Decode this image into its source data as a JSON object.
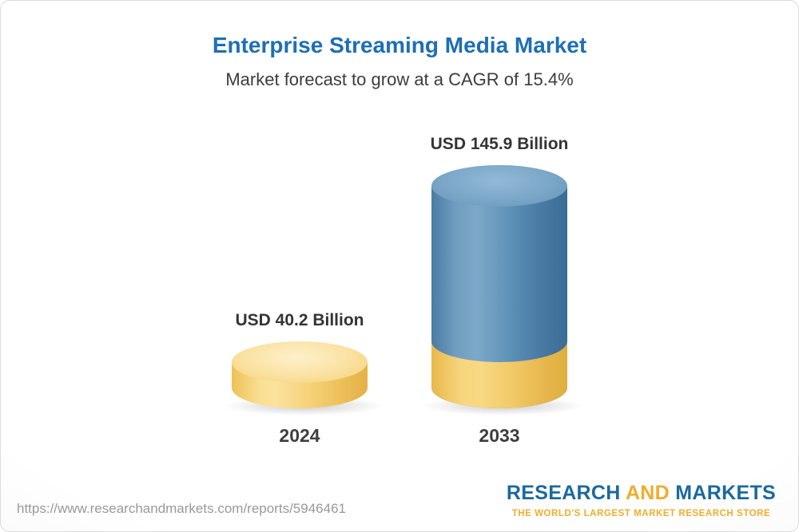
{
  "chart_data": {
    "type": "bar",
    "style": "3d-cylinder",
    "title": "Enterprise Streaming Media Market",
    "subtitle": "Market forecast to grow at a CAGR of 15.4%",
    "cagr": "15.4%",
    "unit": "USD Billion",
    "categories": [
      "2024",
      "2033"
    ],
    "values": [
      40.2,
      145.9
    ],
    "value_labels": [
      "USD 40.2 Billion",
      "USD 145.9 Billion"
    ],
    "bars": [
      {
        "category": "2024",
        "value": 40.2,
        "segments": [
          {
            "color": "gold",
            "value": 40.2
          }
        ]
      },
      {
        "category": "2033",
        "value": 145.9,
        "segments": [
          {
            "color": "gold",
            "value": 40.2
          },
          {
            "color": "blue",
            "value": 105.7
          }
        ]
      }
    ],
    "xlabel": "",
    "ylabel": "",
    "axes_visible": false,
    "grid": false,
    "legend_position": "none"
  },
  "footer": {
    "url": "https://www.researchandmarkets.com/reports/5946461",
    "logo": {
      "part1": "RESEARCH",
      "part2": "AND",
      "part3": "MARKETS",
      "tagline": "THE WORLD'S LARGEST MARKET RESEARCH STORE"
    }
  },
  "colors": {
    "title_blue": "#1e6fb4",
    "text_dark": "#3c3c3c",
    "url_gray": "#98999b",
    "logo_blue": "#1b699d",
    "logo_gold": "#f0ad2d",
    "bar_gold": "#f5cd69",
    "bar_blue": "#4a7da8"
  }
}
